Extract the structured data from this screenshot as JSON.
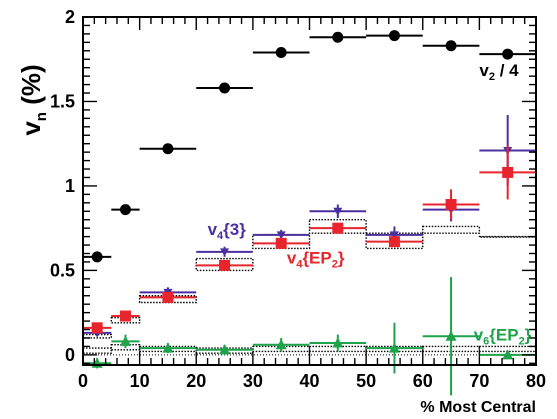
{
  "chart_data": {
    "type": "scatter",
    "xlabel": "% Most Central",
    "ylabel": "v_n (%)",
    "xlim": [
      0,
      80
    ],
    "ylim": [
      -0.06,
      2.0
    ],
    "x_ticks": [
      "0",
      "10",
      "20",
      "30",
      "40",
      "50",
      "60",
      "70",
      "80"
    ],
    "y_ticks": [
      "0",
      "0.5",
      "1",
      "1.5",
      "2"
    ],
    "grid": false,
    "series": [
      {
        "name": "v_2 / 4",
        "label_main": "v",
        "label_sub": "2",
        "label_rest": " / 4",
        "color": "#000000",
        "marker": "circle",
        "x": [
          2.5,
          7.5,
          15,
          25,
          35,
          45,
          55,
          65,
          75
        ],
        "x_lo": [
          0,
          5,
          10,
          20,
          30,
          40,
          50,
          60,
          70
        ],
        "x_hi": [
          5,
          10,
          20,
          30,
          40,
          50,
          60,
          70,
          80
        ],
        "y": [
          0.58,
          0.86,
          1.22,
          1.58,
          1.79,
          1.88,
          1.89,
          1.83,
          1.78
        ],
        "y_err": [
          0.0,
          0.0,
          0.0,
          0.0,
          0.0,
          0.0,
          0.0,
          0.0,
          0.0
        ]
      },
      {
        "name": "v_4{3}",
        "label_main": "v",
        "label_sub": "4",
        "label_rest": "{3}",
        "color": "#4b2fa0",
        "marker": "triangle-down",
        "x": [
          2.5,
          7.5,
          15,
          25,
          35,
          45,
          55,
          65,
          75
        ],
        "x_lo": [
          0,
          5,
          10,
          20,
          30,
          40,
          50,
          60,
          70
        ],
        "x_hi": [
          5,
          10,
          20,
          30,
          40,
          50,
          60,
          70,
          80
        ],
        "y": [
          0.13,
          0.23,
          0.37,
          0.61,
          0.71,
          0.85,
          0.71,
          0.86,
          1.21
        ],
        "y_err": [
          0.02,
          0.02,
          0.03,
          0.03,
          0.03,
          0.04,
          0.05,
          0.07,
          0.21
        ]
      },
      {
        "name": "v_4{EP_2}",
        "label_main": "v",
        "label_sub": "4",
        "label_rest": "{EP",
        "label_sub2": "2",
        "label_end": "}",
        "color": "#e8242c",
        "marker": "square",
        "x": [
          2.5,
          7.5,
          15,
          25,
          35,
          45,
          55,
          65,
          75
        ],
        "x_lo": [
          0,
          5,
          10,
          20,
          30,
          40,
          50,
          60,
          70
        ],
        "x_hi": [
          5,
          10,
          20,
          30,
          40,
          50,
          60,
          70,
          80
        ],
        "y": [
          0.16,
          0.23,
          0.34,
          0.53,
          0.66,
          0.75,
          0.67,
          0.89,
          1.08
        ],
        "y_err": [
          0.01,
          0.01,
          0.01,
          0.01,
          0.01,
          0.02,
          0.03,
          0.09,
          0.16
        ]
      },
      {
        "name": "v_6{EP_2}",
        "label_main": "v",
        "label_sub": "6",
        "label_rest": "{EP",
        "label_sub2": "2",
        "label_end": "}",
        "color": "#1fa34a",
        "marker": "triangle-up",
        "x": [
          2.5,
          7.5,
          15,
          25,
          35,
          45,
          55,
          65,
          75
        ],
        "x_lo": [
          0,
          5,
          10,
          20,
          30,
          40,
          50,
          60,
          70
        ],
        "x_hi": [
          5,
          10,
          20,
          30,
          40,
          50,
          60,
          70,
          80
        ],
        "y": [
          -0.05,
          0.08,
          0.04,
          0.03,
          0.06,
          0.07,
          0.04,
          0.11,
          0.0
        ],
        "y_err": [
          0.03,
          0.04,
          0.03,
          0.03,
          0.04,
          0.05,
          0.15,
          0.35,
          0.0
        ]
      }
    ],
    "systematics": [
      {
        "name": "v4-systematic-band",
        "color": "#000000",
        "x_lo": [
          0,
          5,
          10,
          20,
          30,
          40,
          50,
          60,
          70
        ],
        "x_hi": [
          5,
          10,
          20,
          30,
          40,
          50,
          60,
          70,
          80
        ],
        "y_lo": [
          0.1,
          0.19,
          0.31,
          0.5,
          0.63,
          0.72,
          0.63,
          0.72,
          0.7
        ],
        "y_hi": [
          0.12,
          0.22,
          0.35,
          0.57,
          0.71,
          0.8,
          0.72,
          0.76,
          0.7
        ]
      },
      {
        "name": "v6-systematic-band",
        "color": "#000000",
        "x_lo": [
          0,
          5,
          10,
          20,
          30,
          40,
          50,
          60,
          70
        ],
        "x_hi": [
          5,
          10,
          20,
          30,
          40,
          50,
          60,
          70,
          80
        ],
        "y_lo": [
          0.01,
          0.03,
          0.02,
          0.01,
          0.02,
          0.02,
          0.02,
          0.02,
          0.02
        ],
        "y_hi": [
          0.04,
          0.06,
          0.05,
          0.04,
          0.05,
          0.05,
          0.05,
          0.05,
          0.05
        ]
      }
    ],
    "labels": [
      {
        "series": 0,
        "at": [
          70,
          1.65
        ]
      },
      {
        "series": 1,
        "at": [
          22,
          0.71
        ]
      },
      {
        "series": 2,
        "at": [
          36,
          0.54
        ]
      },
      {
        "series": 3,
        "at": [
          69,
          0.085
        ]
      }
    ]
  }
}
